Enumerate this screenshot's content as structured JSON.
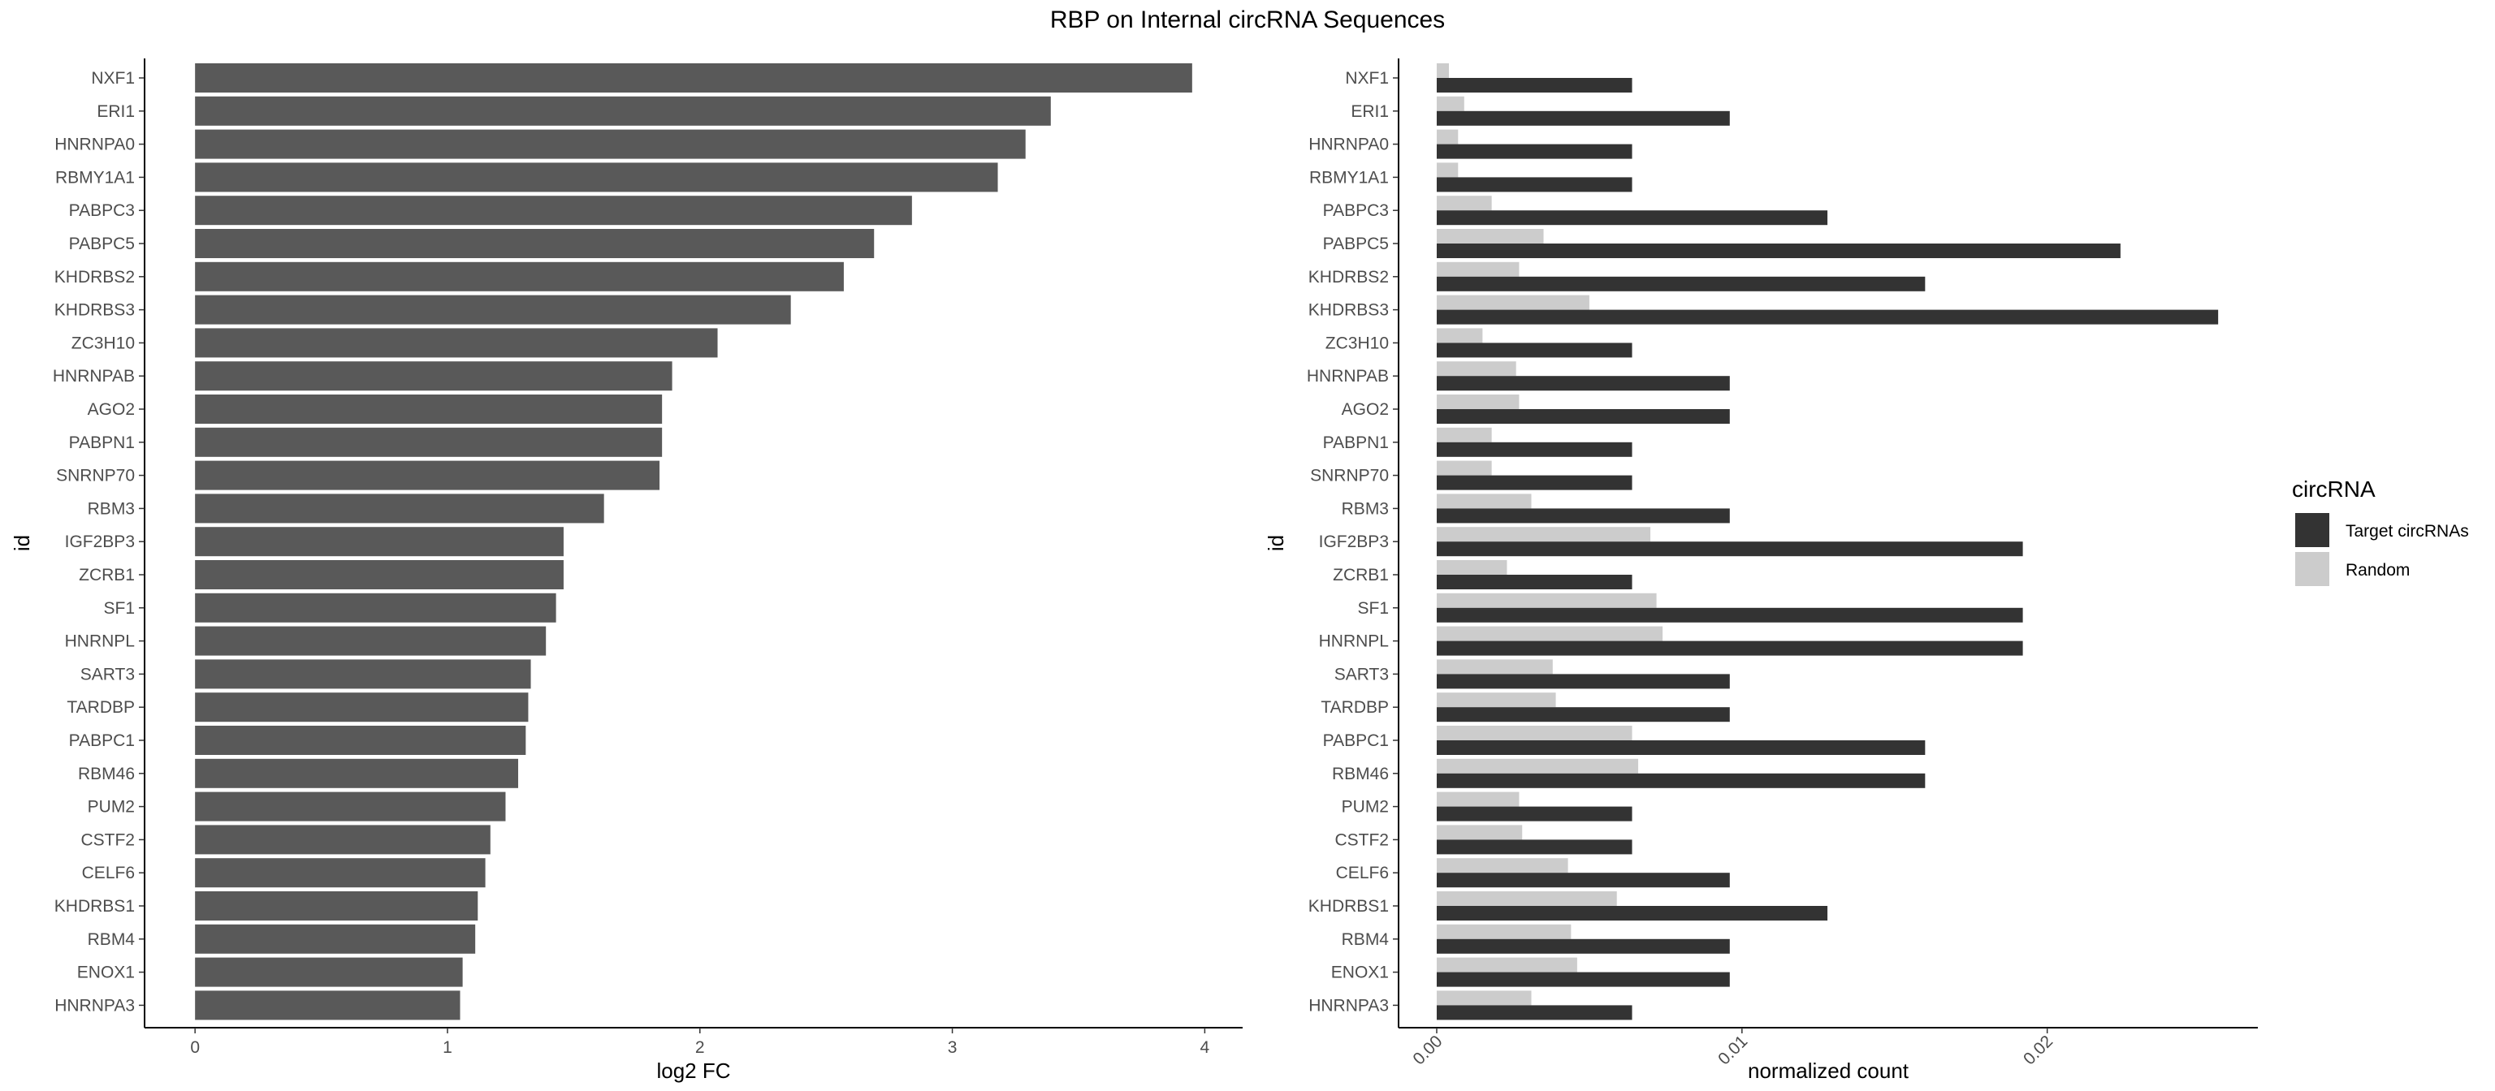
{
  "title": "RBP on Internal circRNA Sequences",
  "chart_data": [
    {
      "type": "bar",
      "orientation": "horizontal",
      "xlabel": "log2 FC",
      "ylabel": "id",
      "xlim": [
        -0.2,
        4.15
      ],
      "xticks": [
        0,
        1,
        2,
        3,
        4
      ],
      "xtick_labels": [
        "0",
        "1",
        "2",
        "3",
        "4"
      ],
      "grid": false,
      "bar_color": "#595959",
      "categories": [
        "NXF1",
        "ERI1",
        "HNRNPA0",
        "RBMY1A1",
        "PABPC3",
        "PABPC5",
        "KHDRBS2",
        "KHDRBS3",
        "ZC3H10",
        "HNRNPAB",
        "AGO2",
        "PABPN1",
        "SNRNP70",
        "RBM3",
        "IGF2BP3",
        "ZCRB1",
        "SF1",
        "HNRNPL",
        "SART3",
        "TARDBP",
        "PABPC1",
        "RBM46",
        "PUM2",
        "CSTF2",
        "CELF6",
        "KHDRBS1",
        "RBM4",
        "ENOX1",
        "HNRNPA3"
      ],
      "values": [
        3.95,
        3.39,
        3.29,
        3.18,
        2.84,
        2.69,
        2.57,
        2.36,
        2.07,
        1.89,
        1.85,
        1.85,
        1.84,
        1.62,
        1.46,
        1.46,
        1.43,
        1.39,
        1.33,
        1.32,
        1.31,
        1.28,
        1.23,
        1.17,
        1.15,
        1.12,
        1.11,
        1.06,
        1.05
      ]
    },
    {
      "type": "bar",
      "orientation": "horizontal",
      "xlabel": "normalized count",
      "ylabel": "id",
      "xlim": [
        -0.00125,
        0.0269
      ],
      "xticks": [
        0,
        0.01,
        0.02
      ],
      "xtick_labels": [
        "0.00",
        "0.01",
        "0.02"
      ],
      "grid": false,
      "legend": {
        "title": "circRNA",
        "position": "right",
        "entries": [
          {
            "name": "Target circRNAs",
            "color": "#333333"
          },
          {
            "name": "Random",
            "color": "#cccccc"
          }
        ]
      },
      "categories": [
        "NXF1",
        "ERI1",
        "HNRNPA0",
        "RBMY1A1",
        "PABPC3",
        "PABPC5",
        "KHDRBS2",
        "KHDRBS3",
        "ZC3H10",
        "HNRNPAB",
        "AGO2",
        "PABPN1",
        "SNRNP70",
        "RBM3",
        "IGF2BP3",
        "ZCRB1",
        "SF1",
        "HNRNPL",
        "SART3",
        "TARDBP",
        "PABPC1",
        "RBM46",
        "PUM2",
        "CSTF2",
        "CELF6",
        "KHDRBS1",
        "RBM4",
        "ENOX1",
        "HNRNPA3"
      ],
      "series": [
        {
          "name": "Target circRNAs",
          "color": "#333333",
          "values": [
            0.0064,
            0.0096,
            0.0064,
            0.0064,
            0.0128,
            0.0224,
            0.016,
            0.0256,
            0.0064,
            0.0096,
            0.0096,
            0.0064,
            0.0064,
            0.0096,
            0.0192,
            0.0064,
            0.0192,
            0.0192,
            0.0096,
            0.0096,
            0.016,
            0.016,
            0.0064,
            0.0064,
            0.0096,
            0.0128,
            0.0096,
            0.0096,
            0.0064
          ]
        },
        {
          "name": "Random",
          "color": "#cccccc",
          "values": [
            0.0004,
            0.0009,
            0.0007,
            0.0007,
            0.0018,
            0.0035,
            0.0027,
            0.005,
            0.0015,
            0.0026,
            0.0027,
            0.0018,
            0.0018,
            0.0031,
            0.007,
            0.0023,
            0.0072,
            0.0074,
            0.0038,
            0.0039,
            0.0064,
            0.0066,
            0.0027,
            0.0028,
            0.0043,
            0.0059,
            0.0044,
            0.0046,
            0.0031
          ]
        }
      ]
    }
  ]
}
